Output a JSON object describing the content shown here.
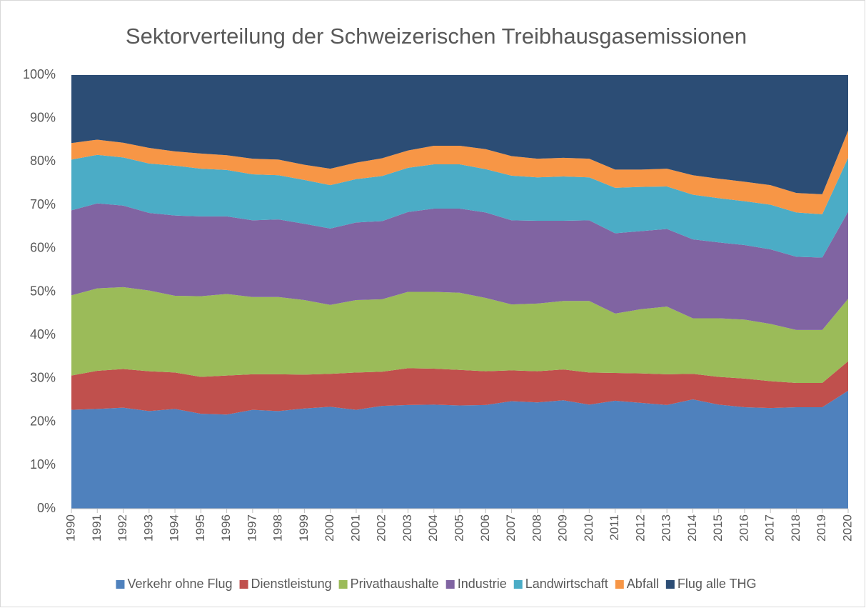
{
  "chart_data": {
    "type": "stacked_area_percent",
    "title": "Sektorverteilung der Schweizerischen Treibhausgasemissionen",
    "categories": [
      "1990",
      "1991",
      "1992",
      "1993",
      "1994",
      "1995",
      "1996",
      "1997",
      "1998",
      "1999",
      "2000",
      "2001",
      "2002",
      "2003",
      "2004",
      "2005",
      "2006",
      "2007",
      "2008",
      "2009",
      "2010",
      "2011",
      "2012",
      "2013",
      "2014",
      "2015",
      "2016",
      "2017",
      "2018",
      "2019",
      "2020"
    ],
    "series": [
      {
        "name": "Verkehr ohne Flug",
        "color": "#4f81bd",
        "values": [
          22.8,
          23.0,
          23.3,
          22.5,
          23.0,
          21.9,
          21.7,
          22.8,
          22.5,
          23.1,
          23.5,
          22.8,
          23.7,
          23.9,
          24.0,
          23.8,
          23.9,
          24.8,
          24.5,
          25.0,
          24.0,
          24.9,
          24.4,
          23.9,
          25.2,
          24.0,
          23.4,
          23.2,
          23.4,
          23.4,
          27.2
        ]
      },
      {
        "name": "Dienstleistung",
        "color": "#c0504d",
        "values": [
          7.9,
          8.8,
          8.9,
          9.2,
          8.4,
          8.5,
          9.0,
          8.2,
          8.5,
          7.8,
          7.6,
          8.6,
          7.9,
          8.5,
          8.3,
          8.2,
          7.8,
          7.1,
          7.2,
          7.1,
          7.4,
          6.4,
          6.8,
          7.1,
          5.9,
          6.4,
          6.6,
          6.2,
          5.6,
          5.6,
          6.8
        ]
      },
      {
        "name": "Privathaushalte",
        "color": "#9bbb59",
        "values": [
          18.5,
          19.0,
          18.9,
          18.6,
          17.7,
          18.6,
          18.8,
          17.8,
          17.8,
          17.2,
          15.9,
          16.7,
          16.7,
          17.6,
          17.7,
          17.8,
          16.9,
          15.2,
          15.6,
          15.8,
          16.5,
          13.7,
          14.8,
          15.6,
          12.8,
          13.5,
          13.6,
          13.2,
          12.2,
          12.2,
          14.4
        ]
      },
      {
        "name": "Industrie",
        "color": "#8064a2",
        "values": [
          19.6,
          19.6,
          18.8,
          17.9,
          18.5,
          18.4,
          17.9,
          17.7,
          17.9,
          17.6,
          17.6,
          17.9,
          18.0,
          18.4,
          19.2,
          19.4,
          19.7,
          19.4,
          19.1,
          18.5,
          18.6,
          18.5,
          18.0,
          17.9,
          18.2,
          17.5,
          17.2,
          17.2,
          16.9,
          16.7,
          20.1
        ]
      },
      {
        "name": "Landwirtschaft",
        "color": "#4bacc6",
        "values": [
          11.7,
          11.2,
          11.1,
          11.4,
          11.5,
          11.0,
          10.7,
          10.6,
          10.2,
          10.1,
          10.0,
          10.0,
          10.4,
          10.2,
          10.2,
          10.2,
          10.0,
          10.3,
          10.0,
          10.2,
          9.9,
          10.5,
          10.2,
          9.8,
          10.3,
          10.2,
          10.1,
          10.3,
          10.2,
          10.0,
          12.4
        ]
      },
      {
        "name": "Abfall",
        "color": "#f79646",
        "values": [
          3.8,
          3.5,
          3.4,
          3.6,
          3.3,
          3.5,
          3.4,
          3.6,
          3.6,
          3.5,
          3.8,
          3.8,
          4.1,
          4.0,
          4.3,
          4.3,
          4.6,
          4.5,
          4.3,
          4.3,
          4.3,
          4.2,
          4.0,
          4.1,
          4.5,
          4.5,
          4.5,
          4.5,
          4.5,
          4.6,
          6.3
        ]
      },
      {
        "name": "Flug alle THG",
        "color": "#2c4d75",
        "values": [
          15.7,
          14.9,
          15.6,
          16.8,
          17.6,
          18.1,
          18.5,
          19.3,
          19.5,
          20.7,
          21.6,
          20.2,
          19.2,
          17.4,
          16.3,
          16.3,
          17.1,
          18.7,
          19.3,
          19.1,
          19.3,
          21.8,
          21.8,
          21.6,
          23.1,
          23.9,
          24.6,
          25.4,
          27.2,
          27.5,
          12.8
        ]
      }
    ],
    "ylim": [
      0,
      100
    ],
    "yticks": [
      {
        "value": 0,
        "label": "0%"
      },
      {
        "value": 10,
        "label": "10%"
      },
      {
        "value": 20,
        "label": "20%"
      },
      {
        "value": 30,
        "label": "30%"
      },
      {
        "value": 40,
        "label": "40%"
      },
      {
        "value": 50,
        "label": "50%"
      },
      {
        "value": 60,
        "label": "60%"
      },
      {
        "value": 70,
        "label": "70%"
      },
      {
        "value": 80,
        "label": "80%"
      },
      {
        "value": 90,
        "label": "90%"
      },
      {
        "value": 100,
        "label": "100%"
      }
    ],
    "legend": "bottom"
  }
}
